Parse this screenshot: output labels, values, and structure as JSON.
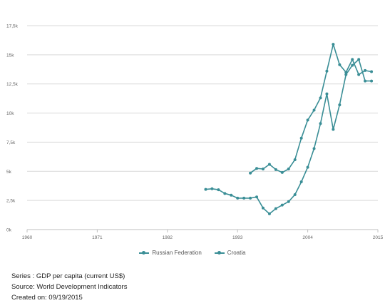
{
  "colors": {
    "series": "#3a8e96",
    "grid": "#d9d9d9",
    "axis": "#bfbfbf",
    "tick_text": "#666666"
  },
  "legend": {
    "items": [
      "Russian Federation",
      "Croatia"
    ]
  },
  "meta": {
    "series_line": "Series : GDP per capita (current US$)",
    "source_line": "Source: World Development Indicators",
    "created_line": "Created on: 09/19/2015"
  },
  "chart_data": {
    "type": "line",
    "title": "",
    "xlabel": "",
    "ylabel": "",
    "xlim": [
      1960,
      2015
    ],
    "ylim": [
      0,
      17500
    ],
    "grid": true,
    "legend_position": "bottom",
    "x_ticks": [
      1960,
      1971,
      1982,
      1993,
      2004,
      2015
    ],
    "x_tick_labels": [
      "1960",
      "1971",
      "1982",
      "1993",
      "2004",
      "2015"
    ],
    "y_ticks": [
      0,
      2500,
      5000,
      7500,
      10000,
      12500,
      15000,
      17500
    ],
    "y_tick_labels": [
      "0k",
      "2,5k",
      "5k",
      "7,5k",
      "10k",
      "12,5k",
      "15k",
      "17,5k"
    ],
    "series": [
      {
        "name": "Russian Federation",
        "x": [
          1988,
          1989,
          1990,
          1991,
          1992,
          1993,
          1994,
          1995,
          1996,
          1997,
          1998,
          1999,
          2000,
          2001,
          2002,
          2003,
          2004,
          2005,
          2006,
          2007,
          2008,
          2009,
          2010,
          2011,
          2012,
          2013,
          2014
        ],
        "y": [
          3450,
          3500,
          3420,
          3100,
          2950,
          2700,
          2700,
          2700,
          2800,
          1850,
          1350,
          1800,
          2100,
          2400,
          3000,
          4100,
          5350,
          6950,
          9100,
          11650,
          8600,
          10700,
          13300,
          14100,
          14600,
          12750,
          12750
        ]
      },
      {
        "name": "Croatia",
        "x": [
          1995,
          1996,
          1997,
          1998,
          1999,
          2000,
          2001,
          2002,
          2003,
          2004,
          2005,
          2006,
          2007,
          2008,
          2009,
          2010,
          2011,
          2012,
          2013,
          2014
        ],
        "y": [
          4850,
          5250,
          5200,
          5600,
          5150,
          4900,
          5200,
          6000,
          7850,
          9400,
          10250,
          11300,
          13600,
          15900,
          14150,
          13500,
          14600,
          13300,
          13650,
          13550
        ]
      }
    ]
  }
}
